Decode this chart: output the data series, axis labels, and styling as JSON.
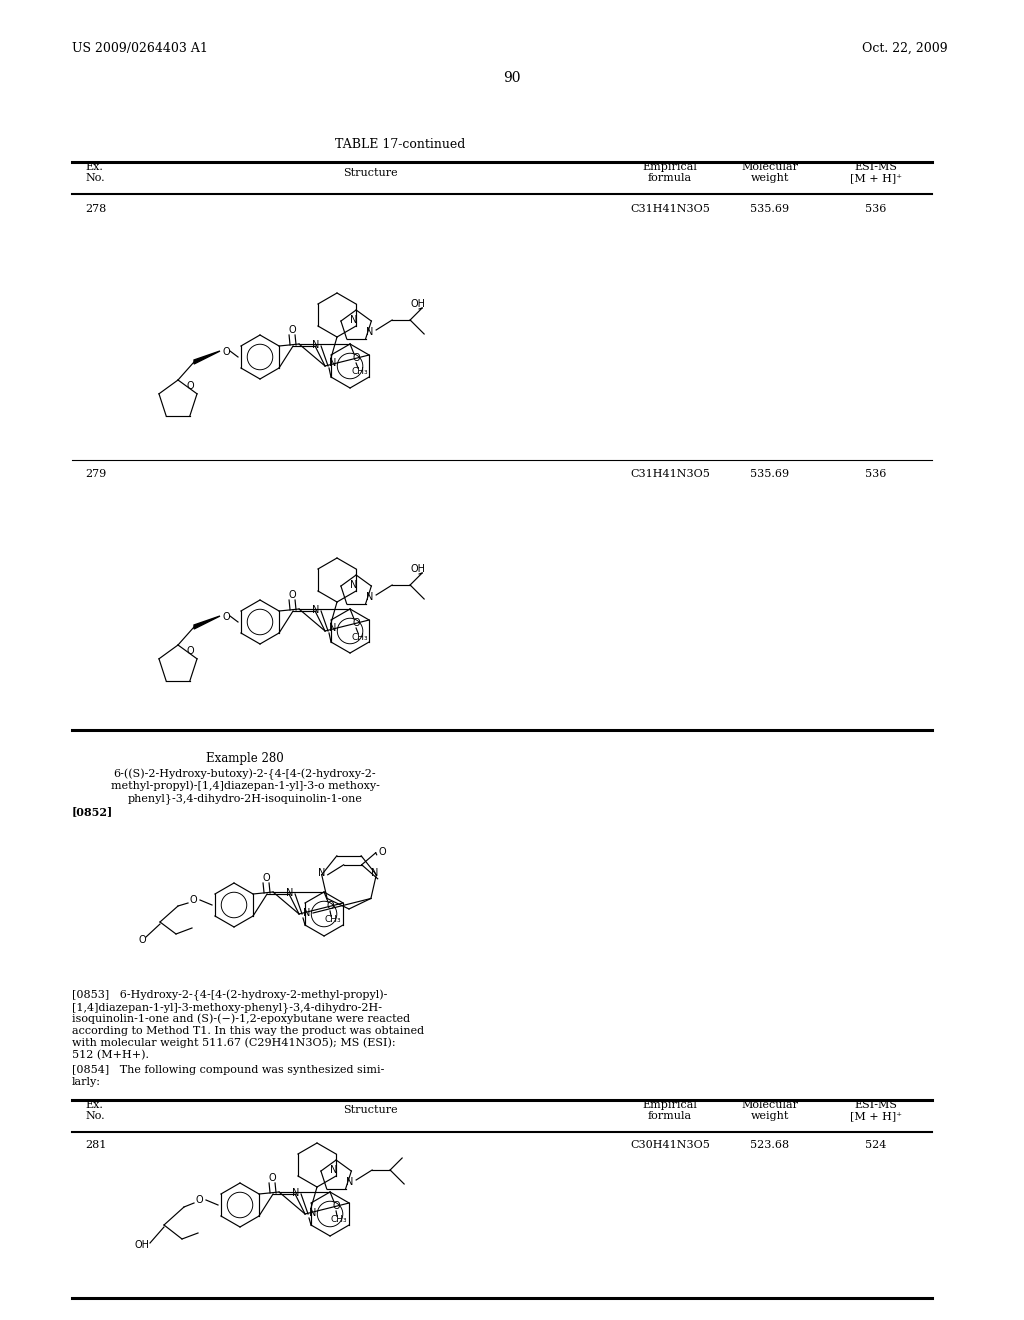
{
  "page_header_left": "US 2009/0264403 A1",
  "page_header_right": "Oct. 22, 2009",
  "page_number": "90",
  "table_title": "TABLE 17-continued",
  "col_ex": "Ex.\nNo.",
  "col_structure": "Structure",
  "col_empirical": "Empirical\nformula",
  "col_mw": "Molecular\nweight",
  "col_esi": "ESI-MS\n[M + H]⁺",
  "row278_no": "278",
  "row278_emp": "C31H41N3O5",
  "row278_mw": "535.69",
  "row278_esi": "536",
  "row279_no": "279",
  "row279_emp": "C31H41N3O5",
  "row279_mw": "535.69",
  "row279_esi": "536",
  "ex280_title": "Example 280",
  "ex280_line1": "6-((S)-2-Hydroxy-butoxy)-2-{4-[4-(2-hydroxy-2-",
  "ex280_line2": "methyl-propyl)-[1,4]diazepan-1-yl]-3-o methoxy-",
  "ex280_line3": "phenyl}-3,4-dihydro-2H-isoquinolin-1-one",
  "para0852": "[0852]",
  "para0853_1": "[0853]   6-Hydroxy-2-{4-[4-(2-hydroxy-2-methyl-propyl)-",
  "para0853_2": "[1,4]diazepan-1-yl]-3-methoxy-phenyl}-3,4-dihydro-2H-",
  "para0853_3": "isoquinolin-1-one and (S)-(−)-1,2-epoxybutane were reacted",
  "para0853_4": "according to Method T1. In this way the product was obtained",
  "para0853_5": "with molecular weight 511.67 (C29H41N3O5); MS (ESI):",
  "para0853_6": "512 (M+H+).",
  "para0854_1": "[0854]   The following compound was synthesized simi-",
  "para0854_2": "larly:",
  "row281_no": "281",
  "row281_emp": "C30H41N3O5",
  "row281_mw": "523.68",
  "row281_esi": "524"
}
